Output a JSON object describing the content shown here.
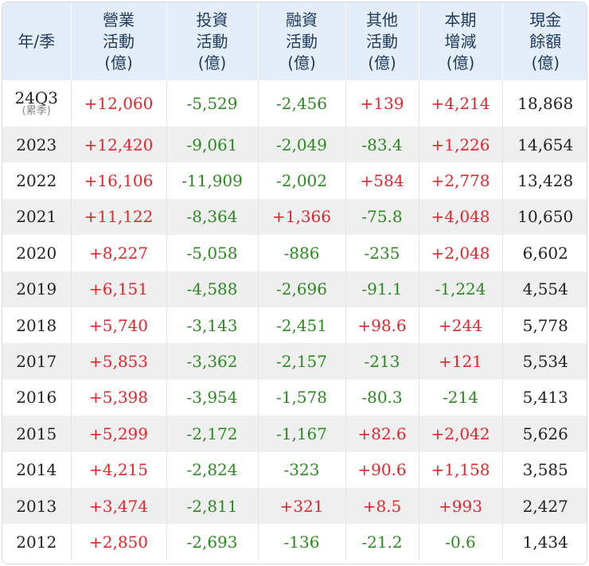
{
  "headers": [
    [
      "年/季"
    ],
    [
      "營業",
      "活動",
      "(億)"
    ],
    [
      "投資",
      "活動",
      "(億)"
    ],
    [
      "融資",
      "活動",
      "(億)"
    ],
    [
      "其他",
      "活動",
      "(億)"
    ],
    [
      "本期",
      "增減",
      "(億)"
    ],
    [
      "現金",
      "餘額",
      "(億)"
    ]
  ],
  "rows": [
    {
      "period": "24Q3",
      "note": "(累季)",
      "operating": "+12,060",
      "investing": "-5,529",
      "financing": "-2,456",
      "other": "+139",
      "change": "+4,214",
      "balance": "18,868"
    },
    {
      "period": "2023",
      "operating": "+12,420",
      "investing": "-9,061",
      "financing": "-2,049",
      "other": "-83.4",
      "change": "+1,226",
      "balance": "14,654"
    },
    {
      "period": "2022",
      "operating": "+16,106",
      "investing": "-11,909",
      "financing": "-2,002",
      "other": "+584",
      "change": "+2,778",
      "balance": "13,428"
    },
    {
      "period": "2021",
      "operating": "+11,122",
      "investing": "-8,364",
      "financing": "+1,366",
      "other": "-75.8",
      "change": "+4,048",
      "balance": "10,650"
    },
    {
      "period": "2020",
      "operating": "+8,227",
      "investing": "-5,058",
      "financing": "-886",
      "other": "-235",
      "change": "+2,048",
      "balance": "6,602"
    },
    {
      "period": "2019",
      "operating": "+6,151",
      "investing": "-4,588",
      "financing": "-2,696",
      "other": "-91.1",
      "change": "-1,224",
      "balance": "4,554"
    },
    {
      "period": "2018",
      "operating": "+5,740",
      "investing": "-3,143",
      "financing": "-2,451",
      "other": "+98.6",
      "change": "+244",
      "balance": "5,778"
    },
    {
      "period": "2017",
      "operating": "+5,853",
      "investing": "-3,362",
      "financing": "-2,157",
      "other": "-213",
      "change": "+121",
      "balance": "5,534"
    },
    {
      "period": "2016",
      "operating": "+5,398",
      "investing": "-3,954",
      "financing": "-1,578",
      "other": "-80.3",
      "change": "-214",
      "balance": "5,413"
    },
    {
      "period": "2015",
      "operating": "+5,299",
      "investing": "-2,172",
      "financing": "-1,167",
      "other": "+82.6",
      "change": "+2,042",
      "balance": "5,626"
    },
    {
      "period": "2014",
      "operating": "+4,215",
      "investing": "-2,824",
      "financing": "-323",
      "other": "+90.6",
      "change": "+1,158",
      "balance": "3,585"
    },
    {
      "period": "2013",
      "operating": "+3,474",
      "investing": "-2,811",
      "financing": "+321",
      "other": "+8.5",
      "change": "+993",
      "balance": "2,427"
    },
    {
      "period": "2012",
      "operating": "+2,850",
      "investing": "-2,693",
      "financing": "-136",
      "other": "-21.2",
      "change": "-0.6",
      "balance": "1,434"
    }
  ],
  "colors": {
    "positive": "#e8242b",
    "negative": "#2a8a1f",
    "header_bg": "#e3eefa",
    "stripe_bg": "#efefef"
  }
}
